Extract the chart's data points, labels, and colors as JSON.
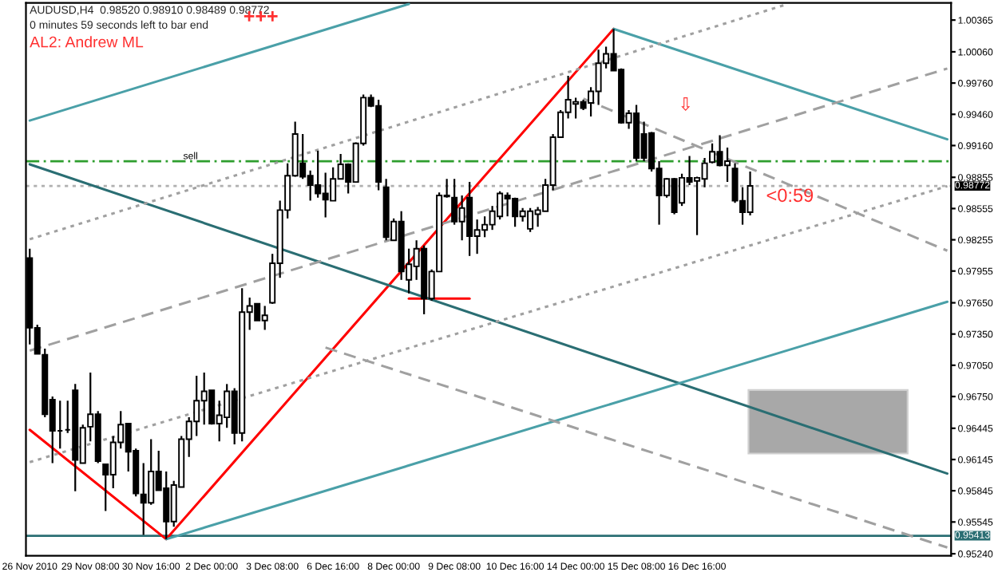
{
  "chart_data": {
    "type": "candlestick",
    "title": "AUDUSD,H4  0.98520 0.98910 0.98489 0.98772",
    "subtitle": "0 minutes 59 seconds left to bar end",
    "annotations": [
      "+++",
      "AL2: Andrew ML",
      "<0:59",
      "⇩"
    ],
    "color": "#000000",
    "categories": [
      "26 Nov 2010",
      null,
      null,
      null,
      null,
      null,
      null,
      null,
      "29 Nov 08:00",
      null,
      null,
      null,
      null,
      null,
      null,
      null,
      "30 Nov 16:00",
      null,
      null,
      null,
      null,
      null,
      null,
      null,
      "2 Dec 00:00",
      null,
      null,
      null,
      null,
      null,
      null,
      null,
      "3 Dec 08:00",
      null,
      null,
      null,
      null,
      null,
      null,
      null,
      "6 Dec 16:00",
      null,
      null,
      null,
      null,
      null,
      null,
      null,
      "8 Dec 00:00",
      null,
      null,
      null,
      null,
      null,
      null,
      null,
      "9 Dec 08:00",
      null,
      null,
      null,
      null,
      null,
      null,
      null,
      "10 Dec 16:00",
      null,
      null,
      null,
      null,
      null,
      null,
      null,
      "14 Dec 00:00",
      null,
      null,
      null,
      null,
      null,
      null,
      null,
      "15 Dec 08:00",
      null,
      null,
      null,
      null,
      null,
      null,
      null,
      "16 Dec 16:00",
      null,
      null,
      null,
      null,
      null,
      null,
      null,
      null,
      null,
      null,
      null,
      null,
      null,
      null,
      null,
      null,
      null,
      null,
      null,
      null,
      null,
      null,
      null,
      null,
      null,
      null,
      null,
      null,
      null,
      null,
      null,
      null,
      null
    ],
    "ohlc": [
      [
        0.9808,
        0.9817,
        0.9725,
        0.9741
      ],
      [
        0.9741,
        0.9744,
        0.9716,
        0.9716
      ],
      [
        0.9715,
        0.9721,
        0.9655,
        0.9658
      ],
      [
        0.9672,
        0.9675,
        0.9611,
        0.9642
      ],
      [
        0.9642,
        0.9671,
        0.9625,
        0.9642
      ],
      [
        0.9643,
        0.9671,
        0.964,
        0.9643
      ],
      [
        0.9681,
        0.9687,
        0.9584,
        0.9614
      ],
      [
        0.9611,
        0.9648,
        0.9611,
        0.9645
      ],
      [
        0.9646,
        0.9698,
        0.9632,
        0.9658
      ],
      [
        0.9658,
        0.9661,
        0.9611,
        0.9613
      ],
      [
        0.961,
        0.961,
        0.9565,
        0.96
      ],
      [
        0.96,
        0.9637,
        0.9587,
        0.9631
      ],
      [
        0.9631,
        0.9661,
        0.9625,
        0.9648
      ],
      [
        0.9649,
        0.9649,
        0.9603,
        0.9622
      ],
      [
        0.9623,
        0.9625,
        0.9579,
        0.9582
      ],
      [
        0.9581,
        0.9611,
        0.9542,
        0.9573
      ],
      [
        0.9573,
        0.9634,
        0.9571,
        0.9603
      ],
      [
        0.9603,
        0.9623,
        0.9585,
        0.9585
      ],
      [
        0.9587,
        0.9603,
        0.9538,
        0.9555
      ],
      [
        0.9555,
        0.9594,
        0.955,
        0.959
      ],
      [
        0.9588,
        0.9637,
        0.9588,
        0.9634
      ],
      [
        0.9634,
        0.9655,
        0.9617,
        0.9651
      ],
      [
        0.9651,
        0.9695,
        0.9637,
        0.9671
      ],
      [
        0.9671,
        0.9698,
        0.9648,
        0.968
      ],
      [
        0.9681,
        0.9681,
        0.9648,
        0.9649
      ],
      [
        0.9649,
        0.9671,
        0.9632,
        0.9657
      ],
      [
        0.9655,
        0.9687,
        0.9645,
        0.968
      ],
      [
        0.968,
        0.9683,
        0.9629,
        0.964
      ],
      [
        0.964,
        0.9779,
        0.9632,
        0.9756
      ],
      [
        0.9756,
        0.977,
        0.9739,
        0.9762
      ],
      [
        0.9764,
        0.9764,
        0.9748,
        0.9748
      ],
      [
        0.9748,
        0.9762,
        0.9739,
        0.9753
      ],
      [
        0.9765,
        0.9812,
        0.9764,
        0.9803
      ],
      [
        0.9803,
        0.9863,
        0.9789,
        0.9854
      ],
      [
        0.9854,
        0.9899,
        0.9846,
        0.9887
      ],
      [
        0.9887,
        0.9939,
        0.9886,
        0.9927
      ],
      [
        0.9899,
        0.9927,
        0.9884,
        0.9886
      ],
      [
        0.9887,
        0.9892,
        0.9863,
        0.9878
      ],
      [
        0.9878,
        0.9911,
        0.9866,
        0.987
      ],
      [
        0.987,
        0.989,
        0.9847,
        0.9864
      ],
      [
        0.9863,
        0.9895,
        0.9863,
        0.9884
      ],
      [
        0.9884,
        0.9908,
        0.9884,
        0.9898
      ],
      [
        0.9898,
        0.9899,
        0.987,
        0.9881
      ],
      [
        0.9881,
        0.9919,
        0.9881,
        0.9918
      ],
      [
        0.9918,
        0.9965,
        0.9916,
        0.9962
      ],
      [
        0.9962,
        0.9965,
        0.9953,
        0.9954
      ],
      [
        0.9954,
        0.996,
        0.9873,
        0.9881
      ],
      [
        0.9876,
        0.9884,
        0.9825,
        0.9828
      ],
      [
        0.9825,
        0.9846,
        0.9825,
        0.9843
      ],
      [
        0.9843,
        0.9853,
        0.9787,
        0.9795
      ],
      [
        0.9787,
        0.9817,
        0.9774,
        0.9802
      ],
      [
        0.98,
        0.9825,
        0.9787,
        0.9817
      ],
      [
        0.9817,
        0.982,
        0.9754,
        0.9769
      ],
      [
        0.9769,
        0.9797,
        0.9767,
        0.9795
      ],
      [
        0.9795,
        0.9871,
        0.9795,
        0.9868
      ],
      [
        0.9867,
        0.9884,
        0.9866,
        0.9868
      ],
      [
        0.9866,
        0.9884,
        0.984,
        0.9843
      ],
      [
        0.9843,
        0.9868,
        0.9825,
        0.9856
      ],
      [
        0.9866,
        0.9881,
        0.981,
        0.9829
      ],
      [
        0.9829,
        0.9845,
        0.9812,
        0.9835
      ],
      [
        0.9835,
        0.9848,
        0.9828,
        0.984
      ],
      [
        0.984,
        0.9858,
        0.9835,
        0.9853
      ],
      [
        0.9848,
        0.9872,
        0.9845,
        0.987
      ],
      [
        0.9868,
        0.9871,
        0.9848,
        0.9865
      ],
      [
        0.9865,
        0.9866,
        0.9838,
        0.9848
      ],
      [
        0.9848,
        0.9856,
        0.9843,
        0.9853
      ],
      [
        0.9836,
        0.9856,
        0.9833,
        0.9853
      ],
      [
        0.985,
        0.9857,
        0.9838,
        0.9854
      ],
      [
        0.9853,
        0.9884,
        0.9853,
        0.9878
      ],
      [
        0.9878,
        0.9927,
        0.9873,
        0.9924
      ],
      [
        0.9924,
        0.995,
        0.9924,
        0.9948
      ],
      [
        0.9948,
        0.9983,
        0.9942,
        0.996
      ],
      [
        0.9956,
        0.9962,
        0.9942,
        0.9958
      ],
      [
        0.9958,
        0.996,
        0.995,
        0.9952
      ],
      [
        0.9957,
        0.9972,
        0.9944,
        0.9968
      ],
      [
        0.9968,
        1.0008,
        0.9955,
        0.9995
      ],
      [
        0.9995,
        1.0011,
        0.999,
        1.0004
      ],
      [
        1.0004,
        1.0028,
        0.9988,
        0.9988
      ],
      [
        0.9989,
        0.999,
        0.9937,
        0.9938
      ],
      [
        0.9938,
        0.995,
        0.9932,
        0.9947
      ],
      [
        0.9947,
        0.9955,
        0.9901,
        0.9904
      ],
      [
        0.9927,
        0.9939,
        0.9901,
        0.9904
      ],
      [
        0.9928,
        0.9929,
        0.9891,
        0.9894
      ],
      [
        0.9894,
        0.9901,
        0.984,
        0.9868
      ],
      [
        0.9868,
        0.9885,
        0.9866,
        0.9884
      ],
      [
        0.9884,
        0.9885,
        0.985,
        0.9852
      ],
      [
        0.9861,
        0.9889,
        0.9858,
        0.9885
      ],
      [
        0.9885,
        0.9906,
        0.9878,
        0.9881
      ],
      [
        0.9882,
        0.9886,
        0.983,
        0.9885
      ],
      [
        0.9884,
        0.9904,
        0.9876,
        0.9899
      ],
      [
        0.99,
        0.9918,
        0.9899,
        0.991
      ],
      [
        0.991,
        0.9926,
        0.9896,
        0.9897
      ],
      [
        0.9897,
        0.9914,
        0.9881,
        0.9901
      ],
      [
        0.9894,
        0.9899,
        0.9861,
        0.9863
      ],
      [
        0.9863,
        0.9876,
        0.984,
        0.9852
      ],
      [
        0.9852,
        0.9891,
        0.98489,
        0.98772
      ],
      null,
      null,
      null,
      null,
      null,
      null,
      null,
      null,
      null,
      null,
      null,
      null,
      null,
      null,
      null,
      null,
      null,
      null,
      null,
      null,
      null,
      null,
      null,
      null,
      null,
      null
    ],
    "series": [
      {
        "type": "line",
        "color": "#ff0000",
        "line_style": "solid",
        "values": [
          0.9643,
          null,
          null,
          null,
          null,
          null,
          null,
          null,
          null,
          null,
          null,
          null,
          null,
          null,
          null,
          null,
          null,
          null,
          0.9538,
          null,
          null,
          null,
          null,
          null,
          null,
          null,
          null,
          null,
          null,
          null,
          null,
          null,
          null,
          null,
          null,
          null,
          null,
          null,
          null,
          null,
          null,
          null,
          null,
          null,
          null,
          null,
          null,
          null,
          null,
          null,
          null,
          null,
          null,
          null,
          null,
          null,
          null,
          null,
          null,
          null,
          null,
          null,
          null,
          null,
          null,
          null,
          null,
          null,
          null,
          null,
          null,
          null,
          null,
          null,
          null,
          null,
          null,
          1.0028,
          null,
          null,
          null,
          null,
          null,
          null,
          null,
          null,
          null,
          null,
          null,
          null,
          null,
          null,
          null,
          null,
          null,
          null,
          null,
          null,
          null,
          null,
          null,
          null,
          null,
          null,
          null,
          null,
          null,
          null,
          null,
          null,
          null,
          null,
          null,
          null,
          null,
          null,
          null,
          null,
          null,
          null,
          null,
          null
        ]
      },
      {
        "type": "line",
        "color": "#ff0000",
        "line_style": "solid",
        "values": [
          null,
          null,
          null,
          null,
          null,
          null,
          null,
          null,
          null,
          null,
          null,
          null,
          null,
          null,
          null,
          null,
          null,
          null,
          null,
          null,
          null,
          null,
          null,
          null,
          null,
          null,
          null,
          null,
          null,
          null,
          null,
          null,
          null,
          null,
          null,
          null,
          null,
          null,
          null,
          null,
          null,
          null,
          null,
          null,
          null,
          null,
          null,
          null,
          null,
          null,
          0.9769,
          null,
          null,
          null,
          null,
          null,
          null,
          null,
          0.9769,
          null,
          null,
          null,
          null,
          null,
          null,
          null,
          null,
          null,
          null,
          null,
          null,
          null,
          null,
          null,
          null,
          null,
          null,
          null,
          null,
          null,
          null,
          null,
          null,
          null,
          null,
          null,
          null,
          null,
          null,
          null,
          null,
          null,
          null,
          null,
          null,
          null,
          null,
          null,
          null,
          null,
          null,
          null,
          null,
          null,
          null,
          null,
          null,
          null,
          null,
          null,
          null,
          null,
          null,
          null,
          null,
          null,
          null,
          null,
          null,
          null,
          null,
          null
        ]
      },
      {
        "type": "line",
        "color": "#4aa0a8",
        "line_style": "solid",
        "values": [
          0.994,
          null,
          null,
          null,
          null,
          null,
          null,
          null,
          null,
          null,
          null,
          null,
          null,
          null,
          null,
          null,
          null,
          null,
          null,
          null,
          null,
          null,
          null,
          null,
          null,
          null,
          null,
          null,
          null,
          null,
          null,
          null,
          null,
          null,
          null,
          null,
          null,
          null,
          null,
          null,
          null,
          null,
          null,
          null,
          null,
          null,
          null,
          null,
          null,
          null,
          1.0052,
          null,
          null,
          null,
          null,
          null,
          null,
          null,
          null,
          null,
          null,
          null,
          null,
          null,
          null,
          null,
          null,
          null,
          null,
          null,
          null,
          null,
          null,
          null,
          null,
          null,
          null,
          null,
          null,
          null,
          null,
          null,
          null,
          null,
          null,
          null,
          null,
          null,
          null,
          null,
          null,
          null,
          null,
          null,
          null,
          null,
          null,
          null,
          null,
          null,
          null,
          null,
          null,
          null,
          null,
          null,
          null,
          null,
          null,
          null,
          null,
          null,
          null,
          null,
          null,
          null,
          null,
          null,
          null,
          null,
          null,
          null
        ]
      },
      {
        "type": "line",
        "color": "#4aa0a8",
        "line_style": "solid",
        "values": [
          null,
          null,
          null,
          null,
          null,
          null,
          null,
          null,
          null,
          null,
          null,
          null,
          null,
          null,
          null,
          null,
          null,
          null,
          null,
          null,
          null,
          null,
          null,
          null,
          null,
          null,
          null,
          null,
          null,
          null,
          null,
          null,
          null,
          null,
          null,
          null,
          null,
          null,
          null,
          null,
          null,
          null,
          null,
          null,
          null,
          null,
          null,
          null,
          null,
          null,
          null,
          null,
          null,
          null,
          null,
          null,
          null,
          null,
          null,
          null,
          null,
          null,
          null,
          null,
          null,
          null,
          null,
          null,
          null,
          null,
          null,
          null,
          null,
          null,
          null,
          null,
          null,
          1.0028,
          null,
          null,
          null,
          null,
          null,
          null,
          null,
          null,
          null,
          null,
          null,
          null,
          null,
          null,
          null,
          null,
          null,
          null,
          null,
          null,
          null,
          null,
          null,
          null,
          null,
          null,
          null,
          null,
          null,
          null,
          null,
          null,
          null,
          null,
          null,
          null,
          null,
          null,
          null,
          null,
          null,
          null,
          null,
          0.9922
        ]
      },
      {
        "type": "line",
        "color": "#2a6e73",
        "line_style": "solid",
        "values": [
          0.9898,
          null,
          null,
          null,
          null,
          null,
          null,
          null,
          null,
          null,
          null,
          null,
          null,
          null,
          null,
          null,
          null,
          null,
          null,
          null,
          null,
          null,
          null,
          null,
          null,
          null,
          null,
          null,
          null,
          null,
          null,
          null,
          null,
          null,
          null,
          null,
          null,
          null,
          null,
          null,
          null,
          null,
          null,
          null,
          null,
          null,
          null,
          null,
          null,
          null,
          null,
          null,
          null,
          null,
          null,
          null,
          null,
          null,
          null,
          null,
          null,
          null,
          null,
          null,
          null,
          null,
          null,
          null,
          null,
          null,
          null,
          null,
          null,
          null,
          null,
          null,
          null,
          null,
          null,
          null,
          null,
          null,
          null,
          null,
          null,
          null,
          null,
          null,
          null,
          null,
          null,
          null,
          null,
          null,
          null,
          null,
          null,
          null,
          null,
          null,
          null,
          null,
          null,
          null,
          null,
          null,
          null,
          null,
          null,
          null,
          null,
          null,
          null,
          null,
          null,
          null,
          null,
          null,
          null,
          null,
          null,
          0.9601
        ]
      },
      {
        "type": "line",
        "color": "#4aa0a8",
        "line_style": "solid",
        "values": [
          null,
          null,
          null,
          null,
          null,
          null,
          null,
          null,
          null,
          null,
          null,
          null,
          null,
          null,
          null,
          null,
          null,
          null,
          0.9538,
          null,
          null,
          null,
          null,
          null,
          null,
          null,
          null,
          null,
          null,
          null,
          null,
          null,
          null,
          null,
          null,
          null,
          null,
          null,
          null,
          null,
          null,
          null,
          null,
          null,
          null,
          null,
          null,
          null,
          null,
          null,
          null,
          null,
          null,
          null,
          null,
          null,
          null,
          null,
          null,
          null,
          null,
          null,
          null,
          null,
          null,
          null,
          null,
          null,
          null,
          null,
          null,
          null,
          null,
          null,
          null,
          null,
          null,
          null,
          null,
          null,
          null,
          null,
          null,
          null,
          null,
          null,
          null,
          null,
          null,
          null,
          null,
          null,
          null,
          null,
          null,
          null,
          null,
          null,
          null,
          null,
          null,
          null,
          null,
          null,
          null,
          null,
          null,
          null,
          null,
          null,
          null,
          null,
          null,
          null,
          null,
          null,
          null,
          null,
          null,
          null,
          null,
          0.9766
        ]
      },
      {
        "type": "line",
        "color": "#a0a0a0",
        "line_style": "dotted",
        "values": [
          0.9826,
          null,
          null,
          null,
          null,
          null,
          null,
          null,
          null,
          null,
          null,
          null,
          null,
          null,
          null,
          null,
          null,
          null,
          null,
          null,
          null,
          null,
          null,
          null,
          null,
          null,
          null,
          null,
          null,
          null,
          null,
          null,
          null,
          null,
          null,
          null,
          null,
          null,
          null,
          null,
          null,
          null,
          null,
          null,
          null,
          null,
          null,
          null,
          null,
          null,
          null,
          null,
          null,
          null,
          null,
          null,
          null,
          null,
          null,
          null,
          null,
          null,
          null,
          null,
          null,
          null,
          null,
          null,
          null,
          null,
          null,
          null,
          null,
          null,
          null,
          null,
          null,
          null,
          null,
          null,
          null,
          null,
          null,
          null,
          null,
          null,
          null,
          null,
          null,
          null,
          null,
          null,
          null,
          null,
          null,
          null,
          null,
          null,
          null,
          null,
          1.0052,
          null,
          null,
          null,
          null,
          null,
          null,
          null,
          null,
          null,
          null,
          null,
          null,
          null,
          null,
          null,
          null,
          null,
          null,
          null,
          null,
          null
        ]
      },
      {
        "type": "line",
        "color": "#a0a0a0",
        "line_style": "dashed",
        "values": [
          0.9719,
          null,
          null,
          null,
          null,
          null,
          null,
          null,
          null,
          null,
          null,
          null,
          null,
          null,
          null,
          null,
          null,
          null,
          null,
          null,
          null,
          null,
          null,
          null,
          null,
          null,
          null,
          null,
          null,
          null,
          null,
          null,
          null,
          null,
          null,
          null,
          null,
          null,
          null,
          null,
          null,
          null,
          null,
          null,
          null,
          null,
          null,
          null,
          null,
          null,
          null,
          null,
          null,
          null,
          null,
          null,
          null,
          null,
          null,
          null,
          null,
          null,
          null,
          null,
          null,
          null,
          null,
          null,
          null,
          null,
          null,
          null,
          null,
          null,
          null,
          null,
          null,
          null,
          null,
          null,
          null,
          null,
          null,
          null,
          null,
          null,
          null,
          null,
          null,
          null,
          null,
          null,
          null,
          null,
          null,
          null,
          null,
          null,
          null,
          null,
          null,
          null,
          null,
          null,
          null,
          null,
          null,
          null,
          null,
          null,
          null,
          null,
          null,
          null,
          null,
          null,
          null,
          null,
          null,
          null,
          null,
          0.999
        ]
      },
      {
        "type": "line",
        "color": "#a0a0a0",
        "line_style": "dotted",
        "values": [
          0.9612,
          null,
          null,
          null,
          null,
          null,
          null,
          null,
          null,
          null,
          null,
          null,
          null,
          null,
          null,
          null,
          null,
          null,
          null,
          null,
          null,
          null,
          null,
          null,
          null,
          null,
          null,
          null,
          null,
          null,
          null,
          null,
          null,
          null,
          null,
          null,
          null,
          null,
          null,
          null,
          null,
          null,
          null,
          null,
          null,
          null,
          null,
          null,
          null,
          null,
          null,
          null,
          null,
          null,
          null,
          null,
          null,
          null,
          null,
          null,
          null,
          null,
          null,
          null,
          null,
          null,
          null,
          null,
          null,
          null,
          null,
          null,
          null,
          null,
          null,
          null,
          null,
          null,
          null,
          null,
          null,
          null,
          null,
          null,
          null,
          null,
          null,
          null,
          null,
          null,
          null,
          null,
          null,
          null,
          null,
          null,
          null,
          null,
          null,
          null,
          null,
          null,
          null,
          null,
          null,
          null,
          null,
          null,
          null,
          null,
          null,
          null,
          null,
          null,
          null,
          null,
          null,
          null,
          null,
          null,
          null,
          0.9877
        ]
      },
      {
        "type": "line",
        "color": "#a0a0a0",
        "line_style": "dashed",
        "values": [
          null,
          null,
          null,
          null,
          null,
          null,
          null,
          null,
          null,
          null,
          null,
          null,
          null,
          null,
          null,
          null,
          null,
          null,
          null,
          null,
          null,
          null,
          null,
          null,
          null,
          null,
          null,
          null,
          null,
          null,
          null,
          null,
          null,
          null,
          null,
          null,
          null,
          null,
          null,
          null,
          null,
          null,
          null,
          null,
          null,
          null,
          null,
          null,
          null,
          null,
          null,
          null,
          null,
          null,
          null,
          null,
          null,
          null,
          null,
          null,
          null,
          null,
          null,
          null,
          null,
          null,
          null,
          null,
          null,
          null,
          null,
          null,
          null,
          0.9961,
          null,
          null,
          null,
          null,
          null,
          null,
          null,
          null,
          null,
          null,
          null,
          null,
          null,
          null,
          null,
          null,
          null,
          null,
          null,
          null,
          null,
          null,
          null,
          null,
          null,
          null,
          null,
          null,
          null,
          null,
          null,
          null,
          null,
          null,
          null,
          null,
          null,
          null,
          null,
          null,
          null,
          null,
          null,
          null,
          null,
          null,
          null,
          0.9815
        ]
      },
      {
        "type": "line",
        "color": "#a0a0a0",
        "line_style": "dashed",
        "values": [
          null,
          null,
          null,
          null,
          null,
          null,
          null,
          null,
          null,
          null,
          null,
          null,
          null,
          null,
          null,
          null,
          null,
          null,
          null,
          null,
          null,
          null,
          null,
          null,
          null,
          null,
          null,
          null,
          null,
          null,
          null,
          null,
          null,
          null,
          null,
          null,
          null,
          null,
          null,
          0.9722,
          null,
          null,
          null,
          null,
          null,
          null,
          null,
          null,
          null,
          null,
          null,
          null,
          null,
          null,
          null,
          null,
          null,
          null,
          null,
          null,
          null,
          null,
          null,
          null,
          null,
          null,
          null,
          null,
          null,
          null,
          null,
          null,
          null,
          null,
          null,
          null,
          null,
          null,
          null,
          null,
          null,
          null,
          null,
          null,
          null,
          null,
          null,
          null,
          null,
          null,
          null,
          null,
          null,
          null,
          null,
          null,
          null,
          null,
          null,
          null,
          null,
          null,
          null,
          null,
          null,
          null,
          null,
          null,
          null,
          null,
          null,
          null,
          null,
          null,
          null,
          null,
          null,
          null,
          null,
          null,
          null,
          0.953
        ]
      }
    ],
    "ref_lines": [
      {
        "axis": "y",
        "value": 0.9901,
        "label": "sell",
        "color": "#2e9e2e",
        "line_style": "dashdot"
      },
      {
        "axis": "y",
        "value": 0.98772,
        "label": "0.98772",
        "color": "#b0b0b0",
        "line_style": "dotted"
      },
      {
        "axis": "y",
        "value": 0.95413,
        "label": "0.95413",
        "color": "#2a6e73",
        "line_style": "solid"
      }
    ],
    "ylim": [
      0.9522,
      1.0053
    ],
    "yticks": [
      {
        "value": 0.9524,
        "label": "0.95240"
      },
      {
        "value": 0.95545,
        "label": "0.95545"
      },
      {
        "value": 0.95845,
        "label": "0.95845"
      },
      {
        "value": 0.96145,
        "label": "0.96145"
      },
      {
        "value": 0.96445,
        "label": "0.96445"
      },
      {
        "value": 0.9675,
        "label": "0.96750"
      },
      {
        "value": 0.9705,
        "label": "0.97050"
      },
      {
        "value": 0.9735,
        "label": "0.97350"
      },
      {
        "value": 0.9765,
        "label": "0.97650"
      },
      {
        "value": 0.97955,
        "label": "0.97955"
      },
      {
        "value": 0.98255,
        "label": "0.98255"
      },
      {
        "value": 0.98555,
        "label": "0.98555"
      },
      {
        "value": 0.98855,
        "label": "0.98855"
      },
      {
        "value": 0.9916,
        "label": "0.99160"
      },
      {
        "value": 0.9946,
        "label": "0.99460"
      },
      {
        "value": 0.9976,
        "label": "0.99760"
      },
      {
        "value": 1.0006,
        "label": "1.00060"
      },
      {
        "value": 1.00365,
        "label": "1.00365"
      }
    ],
    "grid": false,
    "legend": false
  }
}
